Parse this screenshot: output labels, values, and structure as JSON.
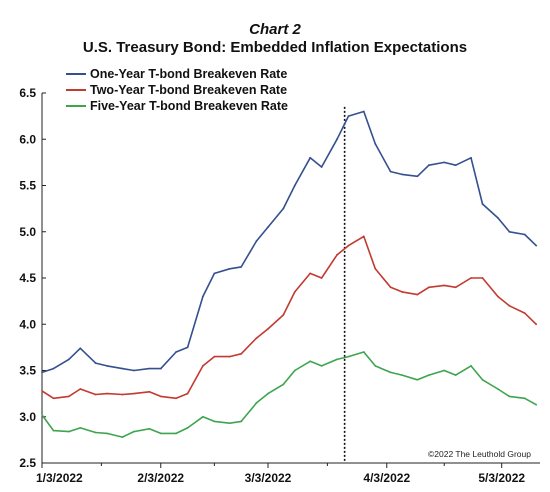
{
  "chart_data": {
    "type": "line",
    "title_label": "Chart 2",
    "title": "U.S. Treasury Bond: Embedded Inflation Expectations",
    "credit": "©2022 The Leuthold Group",
    "xlabel": "",
    "ylabel": "",
    "ylim": [
      2.5,
      6.5
    ],
    "yticks": [
      "2.5",
      "3.0",
      "3.5",
      "4.0",
      "4.5",
      "5.0",
      "5.5",
      "6.0",
      "6.5"
    ],
    "xlim": [
      "2022-01-03",
      "2022-05-13"
    ],
    "xticks": [
      {
        "date": "2022-01-03",
        "label": "1/3/2022"
      },
      {
        "date": "2022-02-03",
        "label": "2/3/2022"
      },
      {
        "date": "2022-03-03",
        "label": "3/3/2022"
      },
      {
        "date": "2022-04-03",
        "label": "4/3/2022"
      },
      {
        "date": "2022-05-03",
        "label": "5/3/2022"
      }
    ],
    "grid": false,
    "legend_position": "top-left",
    "vline": {
      "date": "2022-03-23",
      "style": "dotted"
    },
    "x": [
      "2022-01-03",
      "2022-01-06",
      "2022-01-10",
      "2022-01-13",
      "2022-01-17",
      "2022-01-20",
      "2022-01-24",
      "2022-01-27",
      "2022-01-31",
      "2022-02-03",
      "2022-02-07",
      "2022-02-10",
      "2022-02-14",
      "2022-02-17",
      "2022-02-21",
      "2022-02-24",
      "2022-02-28",
      "2022-03-03",
      "2022-03-07",
      "2022-03-10",
      "2022-03-14",
      "2022-03-17",
      "2022-03-21",
      "2022-03-24",
      "2022-03-28",
      "2022-03-31",
      "2022-04-04",
      "2022-04-07",
      "2022-04-11",
      "2022-04-14",
      "2022-04-18",
      "2022-04-21",
      "2022-04-25",
      "2022-04-28",
      "2022-05-02",
      "2022-05-05",
      "2022-05-09",
      "2022-05-12"
    ],
    "series": [
      {
        "name": "One-Year T-bond Breakeven Rate",
        "color": "#34508f",
        "values": [
          3.48,
          3.52,
          3.62,
          3.74,
          3.58,
          3.55,
          3.52,
          3.5,
          3.52,
          3.52,
          3.7,
          3.75,
          4.3,
          4.55,
          4.6,
          4.62,
          4.9,
          5.05,
          5.25,
          5.5,
          5.8,
          5.7,
          6.0,
          6.25,
          6.3,
          5.95,
          5.65,
          5.62,
          5.6,
          5.72,
          5.75,
          5.72,
          5.8,
          5.3,
          5.15,
          5.0,
          4.97,
          4.85
        ]
      },
      {
        "name": "Two-Year T-bond Breakeven Rate",
        "color": "#c33a30",
        "values": [
          3.28,
          3.2,
          3.22,
          3.3,
          3.24,
          3.25,
          3.24,
          3.25,
          3.27,
          3.22,
          3.2,
          3.25,
          3.55,
          3.65,
          3.65,
          3.68,
          3.85,
          3.95,
          4.1,
          4.35,
          4.55,
          4.5,
          4.75,
          4.85,
          4.95,
          4.6,
          4.4,
          4.35,
          4.32,
          4.4,
          4.42,
          4.4,
          4.5,
          4.5,
          4.3,
          4.2,
          4.12,
          4.0
        ]
      },
      {
        "name": "Five-Year T-bond Breakeven Rate",
        "color": "#3ea54f",
        "values": [
          3.02,
          2.85,
          2.84,
          2.88,
          2.83,
          2.82,
          2.78,
          2.84,
          2.87,
          2.82,
          2.82,
          2.88,
          3.0,
          2.95,
          2.93,
          2.95,
          3.15,
          3.25,
          3.35,
          3.5,
          3.6,
          3.55,
          3.62,
          3.65,
          3.7,
          3.55,
          3.48,
          3.45,
          3.4,
          3.45,
          3.5,
          3.45,
          3.55,
          3.4,
          3.3,
          3.22,
          3.2,
          3.13
        ]
      }
    ]
  }
}
